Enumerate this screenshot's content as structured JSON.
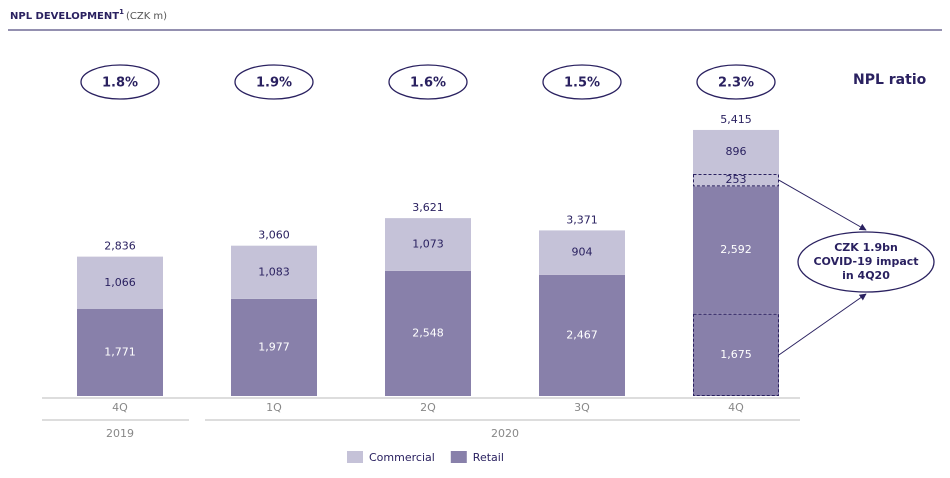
{
  "chart_data": {
    "type": "stacked-bar",
    "title": "NPL DEVELOPMENT",
    "title_footnote": "1",
    "unit": "(CZK m)",
    "categories": [
      "4Q",
      "1Q",
      "2Q",
      "3Q",
      "4Q"
    ],
    "years": [
      "2019",
      "2020",
      "2020",
      "2020",
      "2020"
    ],
    "series": [
      {
        "color": "#8880aa",
        "dashed": true,
        "values": [
          null,
          null,
          null,
          null,
          1675
        ],
        "value_labels": [
          null,
          null,
          null,
          null,
          "1,675"
        ]
      },
      {
        "name": "Retail",
        "color": "#8880aa",
        "values": [
          1771,
          1977,
          2548,
          2467,
          2592
        ],
        "value_labels": [
          "1,771",
          "1,977",
          "2,548",
          "2,467",
          "2,592"
        ]
      },
      {
        "color": "#c5c2d8",
        "dashed": true,
        "values": [
          null,
          null,
          null,
          null,
          253
        ]
      },
      {
        "name": "Commercial",
        "color": "#c5c2d8",
        "values": [
          1066,
          1083,
          1073,
          904,
          896
        ],
        "value_labels": [
          "1,066",
          "1,083",
          "1,073",
          "904",
          "896"
        ]
      }
    ],
    "totals": {
      "values": [
        2836,
        3060,
        3621,
        3371,
        5415
      ],
      "value_labels": [
        "2,836",
        "3,060",
        "3,621",
        "3,371",
        "5,415"
      ]
    },
    "ratio": {
      "name": "NPL ratio",
      "values": [
        1.8,
        1.9,
        1.6,
        1.5,
        2.3
      ],
      "value_labels": [
        "1.8%",
        "1.9%",
        "1.6%",
        "1.5%",
        "2.3%"
      ]
    },
    "annotation": [
      "CZK 1.9bn",
      "COVID-19 impact",
      "in 4Q20"
    ]
  }
}
